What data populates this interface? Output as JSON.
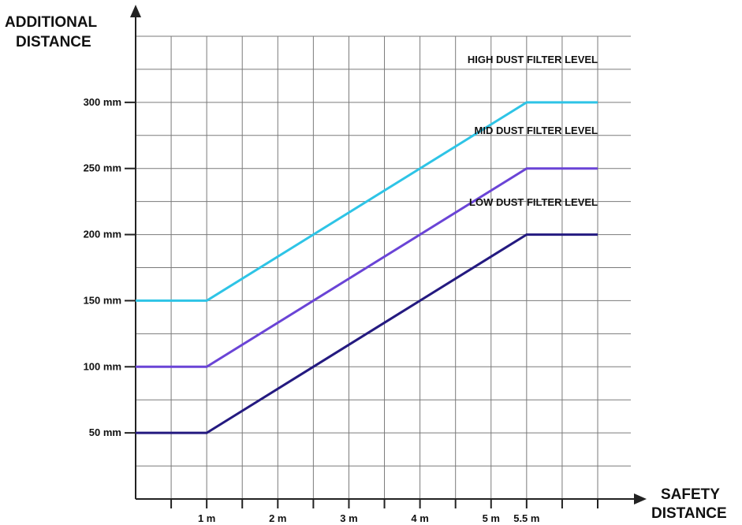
{
  "chart_data": {
    "type": "line",
    "xlabel": [
      "SAFETY",
      "DISTANCE"
    ],
    "ylabel": [
      "ADDITIONAL",
      "DISTANCE"
    ],
    "x_ticks": [
      {
        "value": 1,
        "label": "1 m"
      },
      {
        "value": 2,
        "label": "2 m"
      },
      {
        "value": 3,
        "label": "3 m"
      },
      {
        "value": 4,
        "label": "4 m"
      },
      {
        "value": 5,
        "label": "5 m"
      },
      {
        "value": 5.5,
        "label": "5.5 m"
      }
    ],
    "y_ticks": [
      {
        "value": 50,
        "label": "50 mm"
      },
      {
        "value": 100,
        "label": "100 mm"
      },
      {
        "value": 150,
        "label": "150 mm"
      },
      {
        "value": 200,
        "label": "200 mm"
      },
      {
        "value": 250,
        "label": "250 mm"
      },
      {
        "value": 300,
        "label": "300 mm"
      }
    ],
    "xlim": [
      0,
      6.5
    ],
    "ylim": [
      0,
      350
    ],
    "grid": true,
    "series": [
      {
        "name": "HIGH DUST FILTER LEVEL",
        "color": "#2ec4e6",
        "x": [
          0,
          1,
          5.5,
          6.5
        ],
        "y": [
          150,
          150,
          300,
          300
        ]
      },
      {
        "name": "MID DUST FILTER LEVEL",
        "color": "#6a44d6",
        "x": [
          0,
          1,
          5.5,
          6.5
        ],
        "y": [
          100,
          100,
          250,
          250
        ]
      },
      {
        "name": "LOW DUST FILTER LEVEL",
        "color": "#241a80",
        "x": [
          0,
          1,
          5.5,
          6.5
        ],
        "y": [
          50,
          50,
          200,
          200
        ]
      }
    ]
  }
}
